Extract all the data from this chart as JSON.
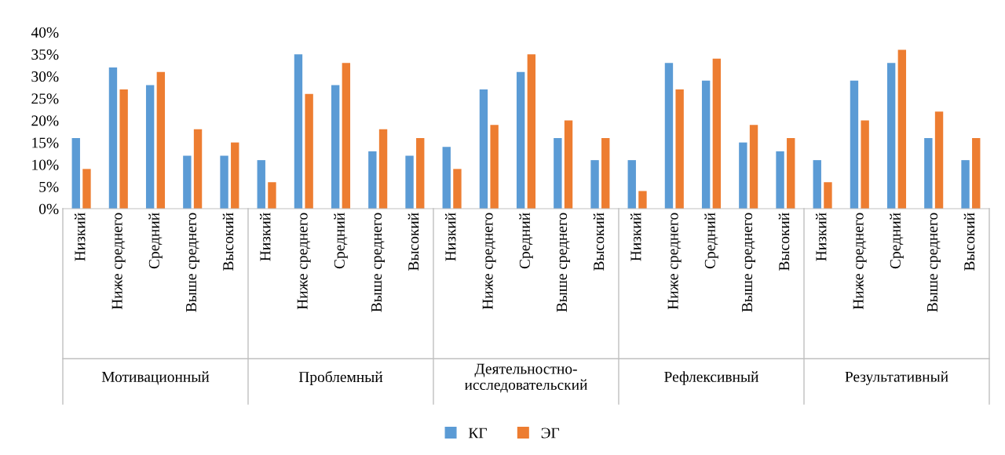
{
  "chart_data": {
    "type": "bar",
    "categories": [
      "Низкий",
      "Ниже среднего",
      "Средний",
      "Выше среднего",
      "Высокий",
      "Низкий",
      "Ниже среднего",
      "Средний",
      "Выше среднего",
      "Высокий",
      "Низкий",
      "Ниже среднего",
      "Средний",
      "Выше среднего",
      "Высокий",
      "Низкий",
      "Ниже среднего",
      "Средний",
      "Выше среднего",
      "Высокий",
      "Низкий",
      "Ниже среднего",
      "Средний",
      "Выше среднего",
      "Высокий"
    ],
    "series": [
      {
        "name": "КГ",
        "color": "#5b9bd5",
        "values": [
          16,
          32,
          28,
          12,
          12,
          11,
          35,
          28,
          13,
          12,
          14,
          27,
          31,
          16,
          11,
          11,
          33,
          29,
          15,
          13,
          11,
          29,
          33,
          16,
          11
        ]
      },
      {
        "name": "ЭГ",
        "color": "#ed7d31",
        "values": [
          9,
          27,
          31,
          18,
          15,
          6,
          26,
          33,
          18,
          16,
          9,
          19,
          35,
          20,
          16,
          4,
          27,
          34,
          19,
          16,
          6,
          20,
          36,
          22,
          16
        ]
      }
    ],
    "annotations": [
      "Мотивационный",
      "Проблемный",
      "Деятельностно-\nисследовательский",
      "Рефлексивный",
      "Результативный"
    ],
    "ylim": [
      0,
      40
    ],
    "yticks": [
      {
        "value": 0,
        "label": "0%"
      },
      {
        "value": 5,
        "label": "5%"
      },
      {
        "value": 10,
        "label": "10%"
      },
      {
        "value": 15,
        "label": "15%"
      },
      {
        "value": 20,
        "label": "20%"
      },
      {
        "value": 25,
        "label": "25%"
      },
      {
        "value": 30,
        "label": "30%"
      },
      {
        "value": 35,
        "label": "35%"
      },
      {
        "value": 40,
        "label": "40%"
      }
    ],
    "grid": false,
    "legend": "bottom"
  }
}
